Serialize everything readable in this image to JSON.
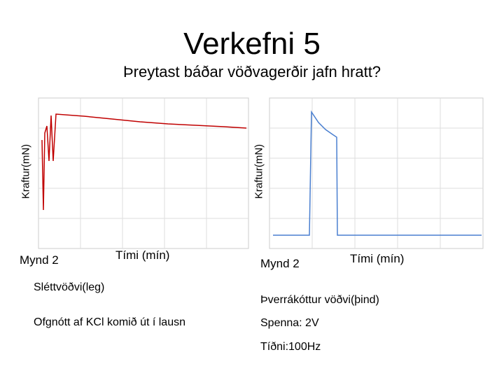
{
  "title": "Verkefni 5",
  "subtitle": "Þreytast báðar vöðvagerðir jafn hratt?",
  "panels": [
    {
      "y_label": "Kraftur(mN)",
      "caption": "Mynd 2",
      "x_label": "Tími (mín)",
      "notes": [
        "Sléttvöðvi(leg)",
        "Ofgnótt af KCl komið út í lausn"
      ]
    },
    {
      "y_label": "Kraftur(mN)",
      "caption": "Mynd 2",
      "x_label": "Tími (mín)",
      "notes": [
        "Þverrákóttur vöðvi(þind)",
        "Spenna: 2V",
        "Tíðni:100Hz"
      ]
    }
  ]
}
